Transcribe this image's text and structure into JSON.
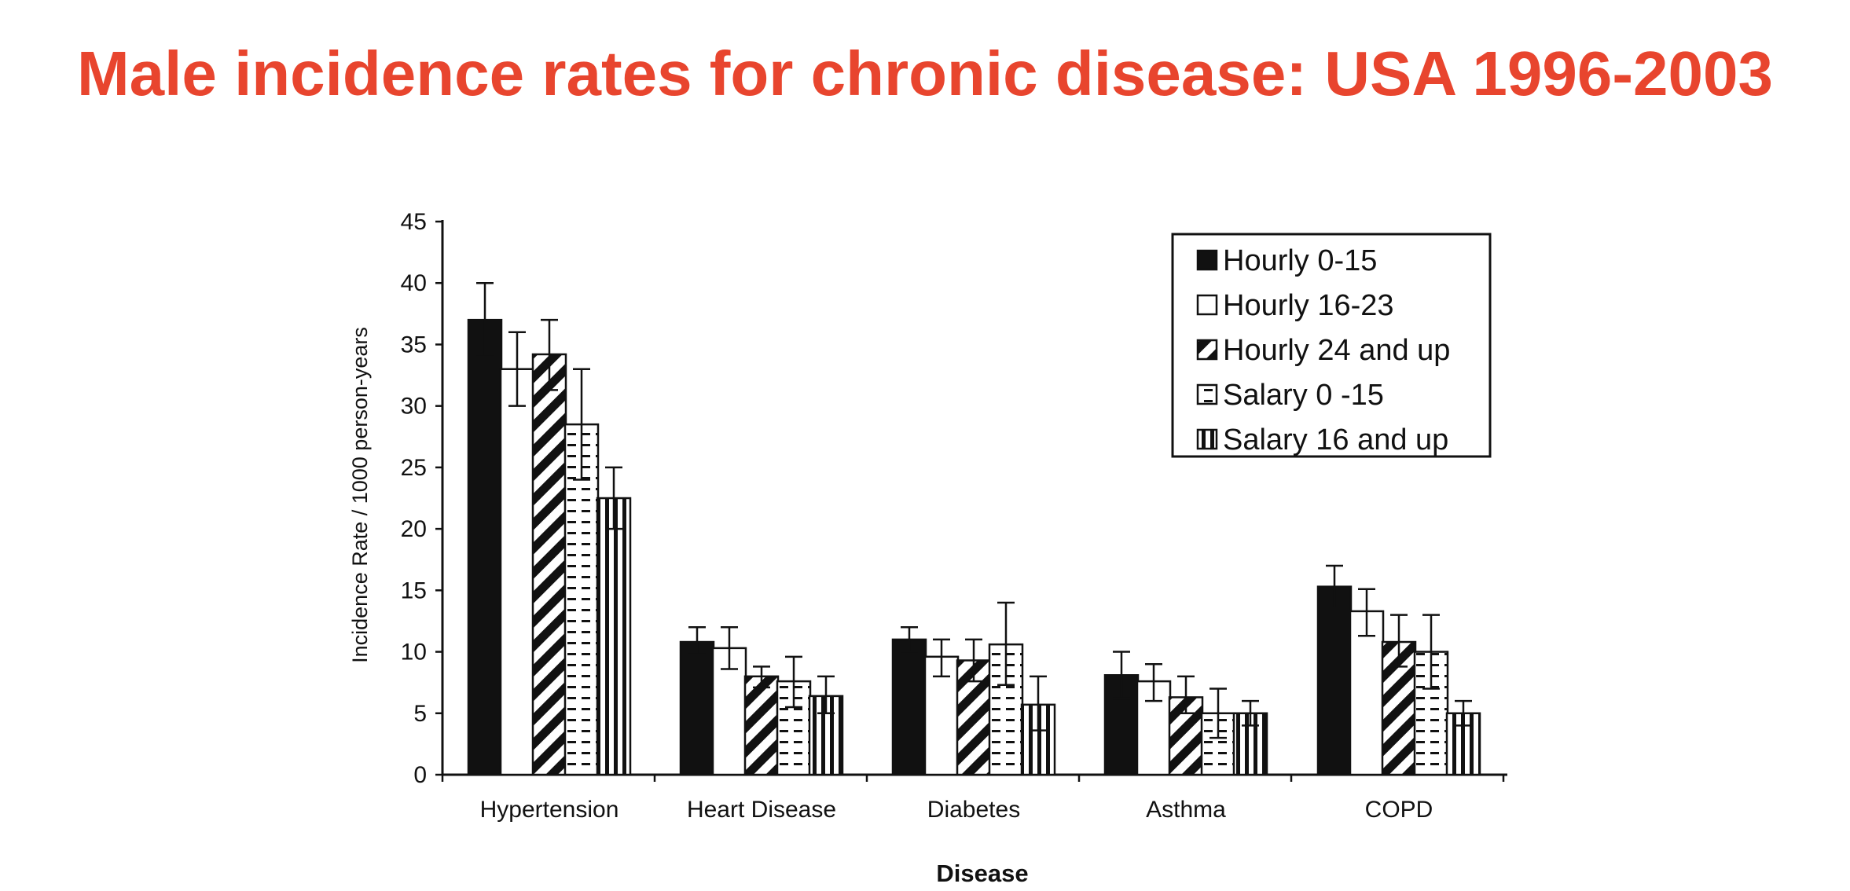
{
  "slide": {
    "title": "Male incidence rates for chronic disease: USA 1996-2003"
  },
  "colors": {
    "title": "#e8452e",
    "ink": "#111111",
    "background": "#ffffff"
  },
  "chart_data": {
    "type": "bar",
    "title": "",
    "xlabel": "Disease",
    "ylabel": "Incidence Rate / 1000 person-years",
    "ylim": [
      0,
      45
    ],
    "yticks": [
      0,
      5,
      10,
      15,
      20,
      25,
      30,
      35,
      40,
      45
    ],
    "grid": false,
    "legend_position": "top-right",
    "categories": [
      "Hypertension",
      "Heart Disease",
      "Diabetes",
      "Asthma",
      "COPD"
    ],
    "series": [
      {
        "name": "Hourly 0-15",
        "pattern": "solid-black",
        "values": [
          37,
          10.8,
          11,
          8.1,
          15.3
        ],
        "error_low": [
          34,
          9.8,
          10,
          6.2,
          13.6
        ],
        "error_high": [
          40,
          12,
          12,
          10,
          17
        ]
      },
      {
        "name": "Hourly 16-23",
        "pattern": "white",
        "values": [
          33,
          10.3,
          9.6,
          7.6,
          13.3
        ],
        "error_low": [
          30,
          8.6,
          8,
          6,
          11.3
        ],
        "error_high": [
          36,
          12,
          11,
          9,
          15.1
        ]
      },
      {
        "name": "Hourly 24 and up",
        "pattern": "diagonal-stripes",
        "values": [
          34.2,
          8,
          9.3,
          6.3,
          10.8
        ],
        "error_low": [
          31.3,
          7.1,
          7.6,
          5,
          8.8
        ],
        "error_high": [
          37,
          8.8,
          11,
          8,
          13
        ]
      },
      {
        "name": "Salary 0 -15",
        "pattern": "horizontal-dashes",
        "values": [
          28.5,
          7.6,
          10.6,
          5,
          10
        ],
        "error_low": [
          24,
          5.5,
          7.3,
          3,
          7
        ],
        "error_high": [
          33,
          9.6,
          14,
          7,
          13
        ]
      },
      {
        "name": "Salary 16 and up",
        "pattern": "vertical-stripes",
        "values": [
          22.5,
          6.4,
          5.7,
          5,
          5
        ],
        "error_low": [
          20,
          5,
          3.6,
          4,
          4
        ],
        "error_high": [
          25,
          8,
          8,
          6,
          6
        ]
      }
    ]
  }
}
